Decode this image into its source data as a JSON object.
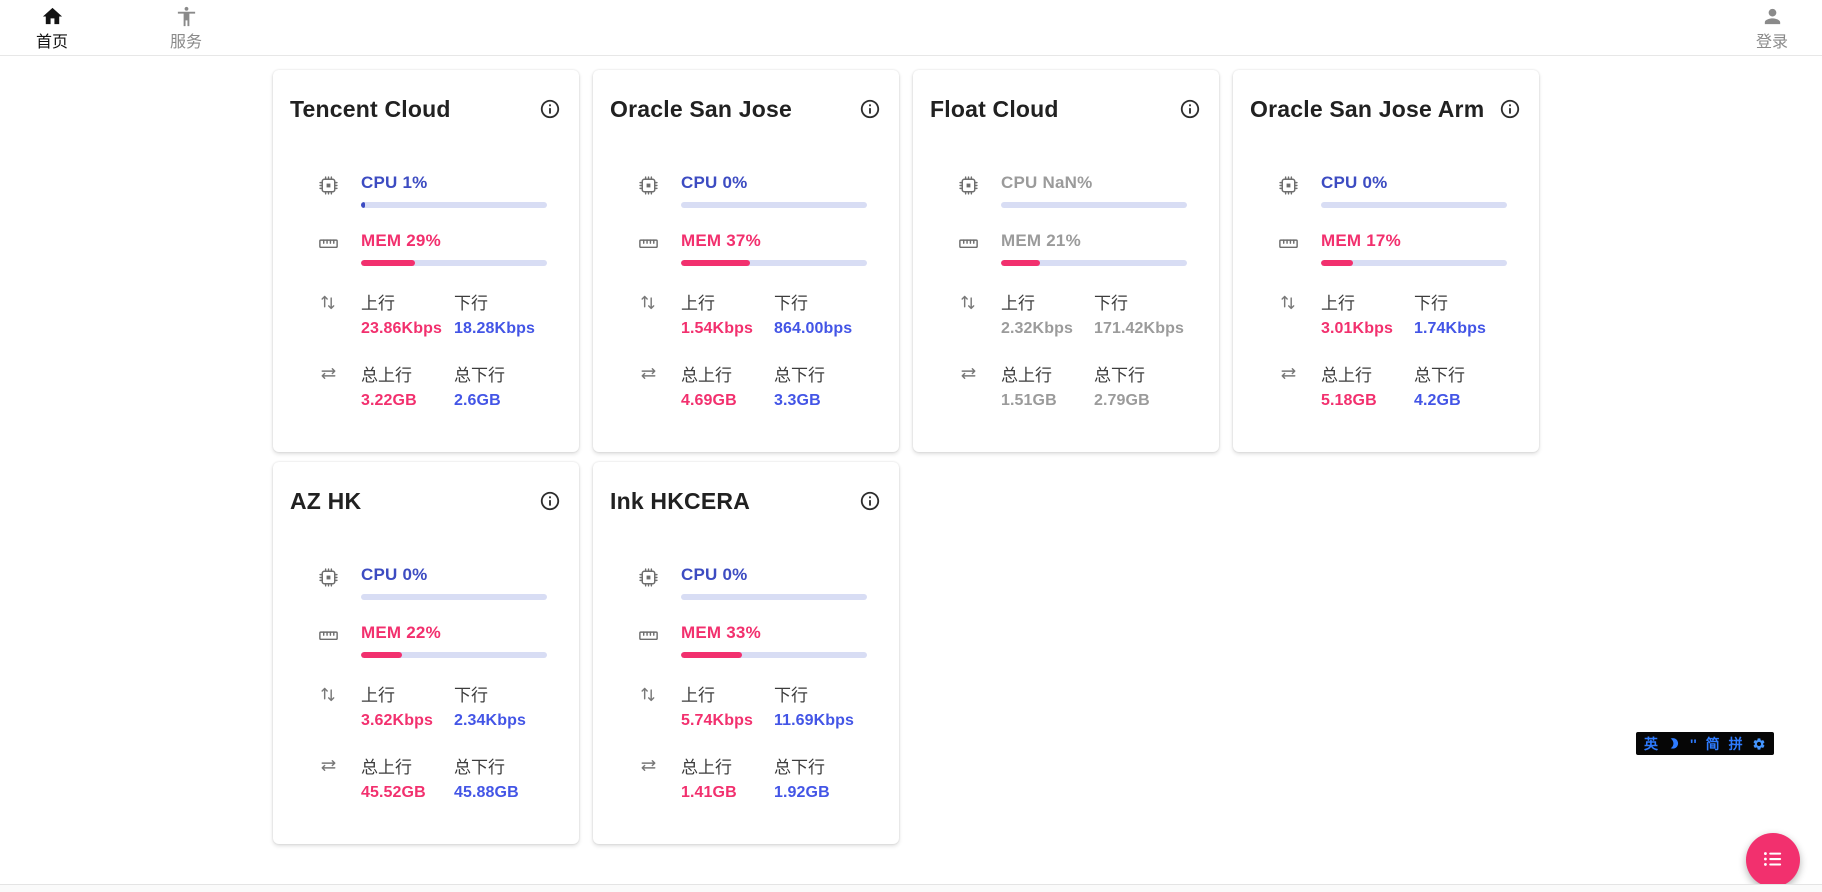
{
  "colors": {
    "blue_label": "#3D4CC2",
    "blue_value": "#4355E6",
    "pink": "#F2306E",
    "grey_value": "#9B9B9B",
    "icon_grey": "#6E6E6E",
    "bar_track": "#D8DDF4"
  },
  "nav": {
    "home": {
      "label": "首页",
      "icon": "home-icon"
    },
    "services": {
      "label": "服务",
      "icon": "accessibility-icon"
    },
    "login": {
      "label": "登录",
      "icon": "person-icon"
    }
  },
  "labels": {
    "cpu": "CPU",
    "mem": "MEM",
    "up": "上行",
    "down": "下行",
    "total_up": "总上行",
    "total_down": "总下行"
  },
  "servers": [
    {
      "name": "Tencent Cloud",
      "cpu": "1%",
      "cpu_pct": 1,
      "mem": "29%",
      "mem_pct": 29,
      "up": "23.86Kbps",
      "down": "18.28Kbps",
      "total_up": "3.22GB",
      "total_down": "2.6GB",
      "online": true
    },
    {
      "name": "Oracle San Jose",
      "cpu": "0%",
      "cpu_pct": 0,
      "mem": "37%",
      "mem_pct": 37,
      "up": "1.54Kbps",
      "down": "864.00bps",
      "total_up": "4.69GB",
      "total_down": "3.3GB",
      "online": true
    },
    {
      "name": "Float Cloud",
      "cpu": "NaN%",
      "cpu_pct": 0,
      "mem": "21%",
      "mem_pct": 21,
      "up": "2.32Kbps",
      "down": "171.42Kbps",
      "total_up": "1.51GB",
      "total_down": "2.79GB",
      "online": false
    },
    {
      "name": "Oracle San Jose Arm",
      "cpu": "0%",
      "cpu_pct": 0,
      "mem": "17%",
      "mem_pct": 17,
      "up": "3.01Kbps",
      "down": "1.74Kbps",
      "total_up": "5.18GB",
      "total_down": "4.2GB",
      "online": true
    },
    {
      "name": "AZ HK",
      "cpu": "0%",
      "cpu_pct": 0,
      "mem": "22%",
      "mem_pct": 22,
      "up": "3.62Kbps",
      "down": "2.34Kbps",
      "total_up": "45.52GB",
      "total_down": "45.88GB",
      "online": true
    },
    {
      "name": "Ink HKCERA",
      "cpu": "0%",
      "cpu_pct": 0,
      "mem": "33%",
      "mem_pct": 33,
      "up": "5.74Kbps",
      "down": "11.69Kbps",
      "total_up": "1.41GB",
      "total_down": "1.92GB",
      "online": true
    }
  ],
  "ime_bar": {
    "english": "英",
    "punct": "''",
    "simplified": "简",
    "pinyin": "拼"
  }
}
